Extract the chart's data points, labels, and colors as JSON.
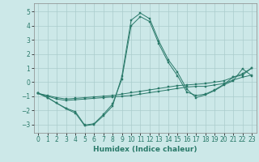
{
  "xlabel": "Humidex (Indice chaleur)",
  "xlim": [
    -0.5,
    23.5
  ],
  "ylim": [
    -3.6,
    5.6
  ],
  "yticks": [
    -3,
    -2,
    -1,
    0,
    1,
    2,
    3,
    4,
    5
  ],
  "xticks": [
    0,
    1,
    2,
    3,
    4,
    5,
    6,
    7,
    8,
    9,
    10,
    11,
    12,
    13,
    14,
    15,
    16,
    17,
    18,
    19,
    20,
    21,
    22,
    23
  ],
  "background_color": "#cce8e8",
  "grid_color": "#aacccc",
  "line_color": "#2a7a6a",
  "lines": [
    {
      "x": [
        0,
        1,
        2,
        3,
        4,
        5,
        6,
        7,
        8,
        9,
        10,
        11,
        12,
        13,
        14,
        15,
        16,
        17,
        18,
        19,
        20,
        21,
        22,
        23
      ],
      "y": [
        -0.8,
        -1.1,
        -1.5,
        -1.9,
        -2.2,
        -3.1,
        -3.0,
        -2.4,
        -1.7,
        0.4,
        4.4,
        4.9,
        4.5,
        2.9,
        1.6,
        0.7,
        -0.5,
        -1.1,
        -0.9,
        -0.6,
        -0.2,
        0.1,
        0.95,
        0.45
      ]
    },
    {
      "x": [
        0,
        1,
        2,
        3,
        4,
        5,
        6,
        7,
        8,
        9,
        10,
        11,
        12,
        13,
        14,
        15,
        16,
        17,
        18,
        19,
        20,
        21,
        22,
        23
      ],
      "y": [
        -0.8,
        -1.1,
        -1.5,
        -1.85,
        -2.1,
        -3.05,
        -2.95,
        -2.3,
        -1.55,
        0.2,
        4.0,
        4.65,
        4.3,
        2.7,
        1.4,
        0.45,
        -0.7,
        -0.95,
        -0.85,
        -0.55,
        -0.15,
        0.35,
        0.5,
        1.0
      ]
    },
    {
      "x": [
        0,
        1,
        2,
        3,
        4,
        5,
        6,
        7,
        8,
        9,
        10,
        11,
        12,
        13,
        14,
        15,
        16,
        17,
        18,
        19,
        20,
        21,
        22,
        23
      ],
      "y": [
        -0.8,
        -1.0,
        -1.2,
        -1.3,
        -1.25,
        -1.2,
        -1.15,
        -1.1,
        -1.05,
        -1.0,
        -0.95,
        -0.85,
        -0.75,
        -0.65,
        -0.55,
        -0.45,
        -0.35,
        -0.3,
        -0.3,
        -0.2,
        -0.1,
        0.15,
        0.35,
        0.5
      ]
    },
    {
      "x": [
        0,
        1,
        2,
        3,
        4,
        5,
        6,
        7,
        8,
        9,
        10,
        11,
        12,
        13,
        14,
        15,
        16,
        17,
        18,
        19,
        20,
        21,
        22,
        23
      ],
      "y": [
        -0.8,
        -0.95,
        -1.1,
        -1.2,
        -1.15,
        -1.1,
        -1.05,
        -1.0,
        -0.95,
        -0.85,
        -0.75,
        -0.65,
        -0.55,
        -0.45,
        -0.35,
        -0.25,
        -0.2,
        -0.15,
        -0.1,
        0.0,
        0.1,
        0.35,
        0.6,
        1.0
      ]
    }
  ]
}
